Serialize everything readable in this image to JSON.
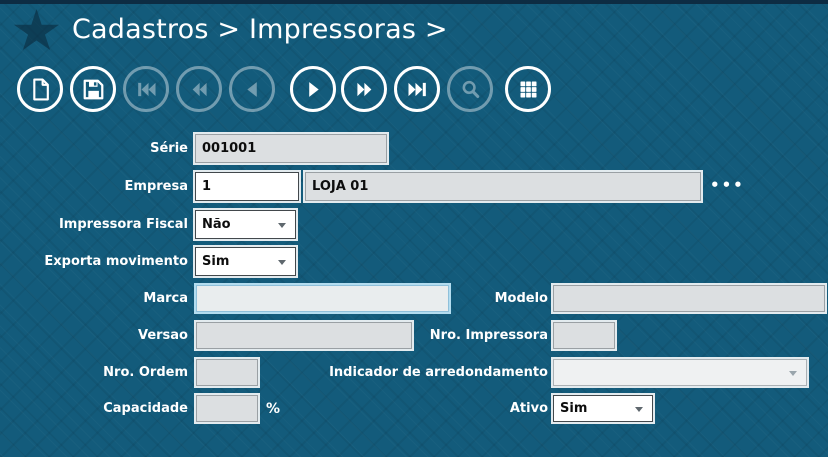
{
  "header": {
    "breadcrumb": "Cadastros > Impressoras >"
  },
  "toolbar": {
    "buttons": [
      {
        "name": "new-record",
        "icon": "document-new-icon",
        "enabled": true
      },
      {
        "name": "save",
        "icon": "save-icon",
        "enabled": true
      },
      {
        "name": "first-record",
        "icon": "skip-to-first-icon",
        "enabled": false
      },
      {
        "name": "fast-backward",
        "icon": "fast-backward-icon",
        "enabled": false
      },
      {
        "name": "previous-record",
        "icon": "previous-icon",
        "enabled": false
      },
      {
        "name": "next-record",
        "icon": "next-icon",
        "enabled": true
      },
      {
        "name": "fast-forward",
        "icon": "fast-forward-icon",
        "enabled": true
      },
      {
        "name": "last-record",
        "icon": "skip-to-last-icon",
        "enabled": true
      },
      {
        "name": "search",
        "icon": "search-icon",
        "enabled": false
      },
      {
        "name": "grid-view",
        "icon": "grid-icon",
        "enabled": true
      }
    ]
  },
  "form": {
    "serie": {
      "label": "Série",
      "value": "001001"
    },
    "empresa": {
      "label": "Empresa",
      "code": "1",
      "description": "LOJA 01",
      "lookup": "•••"
    },
    "impressora_fiscal": {
      "label": "Impressora Fiscal",
      "value": "Não"
    },
    "exporta_movimento": {
      "label": "Exporta movimento",
      "value": "Sim"
    },
    "marca": {
      "label": "Marca",
      "value": ""
    },
    "modelo": {
      "label": "Modelo",
      "value": ""
    },
    "versao": {
      "label": "Versao",
      "value": ""
    },
    "nro_impressora": {
      "label": "Nro. Impressora",
      "value": ""
    },
    "nro_ordem": {
      "label": "Nro. Ordem",
      "value": ""
    },
    "indicador": {
      "label": "Indicador de arredondamento",
      "value": ""
    },
    "capacidade": {
      "label": "Capacidade",
      "value": "",
      "suffix": "%"
    },
    "ativo": {
      "label": "Ativo",
      "value": "Sim"
    }
  },
  "colors": {
    "background": "#135b7b",
    "top_bar": "#0d2c43",
    "field_readonly": "#dcdfe1",
    "focus_border": "#8fc0da",
    "label_text": "#ffffff"
  }
}
